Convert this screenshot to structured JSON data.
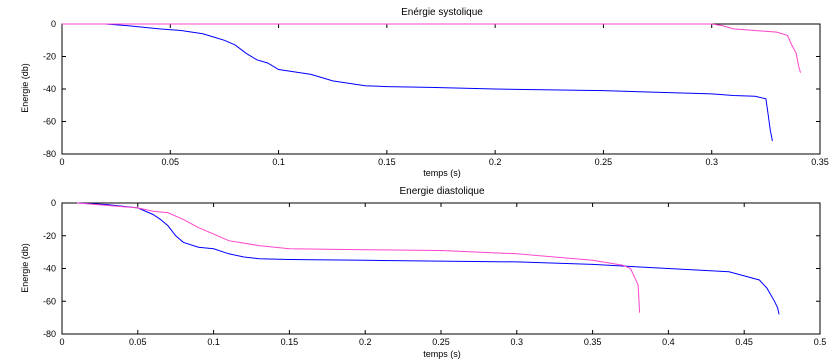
{
  "colors": {
    "series_blue": "#0000ff",
    "series_pink": "#ff44cc"
  },
  "chart_data": [
    {
      "type": "line",
      "title": "Enérgie systolique",
      "xlabel": "temps (s)",
      "ylabel": "Energie (db)",
      "xlim": [
        0,
        0.35
      ],
      "ylim": [
        -80,
        0
      ],
      "xticks": [
        0,
        0.05,
        0.1,
        0.15,
        0.2,
        0.25,
        0.3,
        0.35
      ],
      "xtick_labels": [
        "0",
        "0.05",
        "0.1",
        "0.15",
        "0.2",
        "0.25",
        "0.3",
        "0.35"
      ],
      "yticks": [
        0,
        -20,
        -40,
        -60,
        -80
      ],
      "ytick_labels": [
        "0",
        "-20",
        "-40",
        "-60",
        "-80"
      ],
      "grid": false,
      "series": [
        {
          "color": "#0000ff",
          "x": [
            0,
            0.02,
            0.03,
            0.045,
            0.055,
            0.065,
            0.07,
            0.075,
            0.08,
            0.085,
            0.09,
            0.095,
            0.1,
            0.105,
            0.11,
            0.115,
            0.12,
            0.125,
            0.13,
            0.14,
            0.15,
            0.17,
            0.2,
            0.25,
            0.3,
            0.31,
            0.32,
            0.325,
            0.326,
            0.327,
            0.328
          ],
          "y": [
            0,
            0,
            -1,
            -3,
            -4,
            -6,
            -8,
            -10,
            -13,
            -18,
            -22,
            -24,
            -28,
            -29,
            -30,
            -31,
            -33,
            -35,
            -36,
            -38,
            -38.5,
            -39,
            -40,
            -41,
            -43,
            -44,
            -44.5,
            -46,
            -55,
            -65,
            -72
          ]
        },
        {
          "color": "#ff44cc",
          "x": [
            0,
            0.3,
            0.305,
            0.31,
            0.32,
            0.33,
            0.335,
            0.337,
            0.339,
            0.34,
            0.341
          ],
          "y": [
            0,
            0,
            -1,
            -3,
            -4,
            -5,
            -7,
            -13,
            -18,
            -25,
            -30
          ]
        }
      ]
    },
    {
      "type": "line",
      "title": "Energie diastolique",
      "xlabel": "temps (s)",
      "ylabel": "Energie (db)",
      "xlim": [
        0,
        0.5
      ],
      "ylim": [
        -80,
        0
      ],
      "xticks": [
        0,
        0.05,
        0.1,
        0.15,
        0.2,
        0.25,
        0.3,
        0.35,
        0.4,
        0.45,
        0.5
      ],
      "xtick_labels": [
        "0",
        "0.05",
        "0.1",
        "0.15",
        "0.2",
        "0.25",
        "0.3",
        "0.35",
        "0.4",
        "0.45",
        "0.5"
      ],
      "yticks": [
        0,
        -20,
        -40,
        -60,
        -80
      ],
      "ytick_labels": [
        "0",
        "-20",
        "-40",
        "-60",
        "-80"
      ],
      "grid": false,
      "series": [
        {
          "color": "#0000ff",
          "x": [
            0.01,
            0.03,
            0.05,
            0.06,
            0.065,
            0.07,
            0.075,
            0.08,
            0.09,
            0.1,
            0.11,
            0.12,
            0.13,
            0.15,
            0.2,
            0.3,
            0.35,
            0.4,
            0.44,
            0.46,
            0.465,
            0.47,
            0.472,
            0.473
          ],
          "y": [
            0,
            -1,
            -3,
            -7,
            -10,
            -14,
            -20,
            -24,
            -27,
            -28,
            -31,
            -33,
            -34,
            -34.5,
            -35,
            -36,
            -37.5,
            -40,
            -42,
            -47,
            -52,
            -60,
            -64,
            -68
          ]
        },
        {
          "color": "#ff44cc",
          "x": [
            0.01,
            0.05,
            0.06,
            0.07,
            0.08,
            0.09,
            0.1,
            0.11,
            0.13,
            0.15,
            0.2,
            0.25,
            0.3,
            0.35,
            0.37,
            0.375,
            0.38,
            0.381
          ],
          "y": [
            0,
            -3,
            -5,
            -6,
            -10,
            -15,
            -19,
            -23,
            -26,
            -28,
            -28.5,
            -29,
            -31,
            -35,
            -38,
            -40,
            -50,
            -67
          ]
        }
      ]
    }
  ]
}
